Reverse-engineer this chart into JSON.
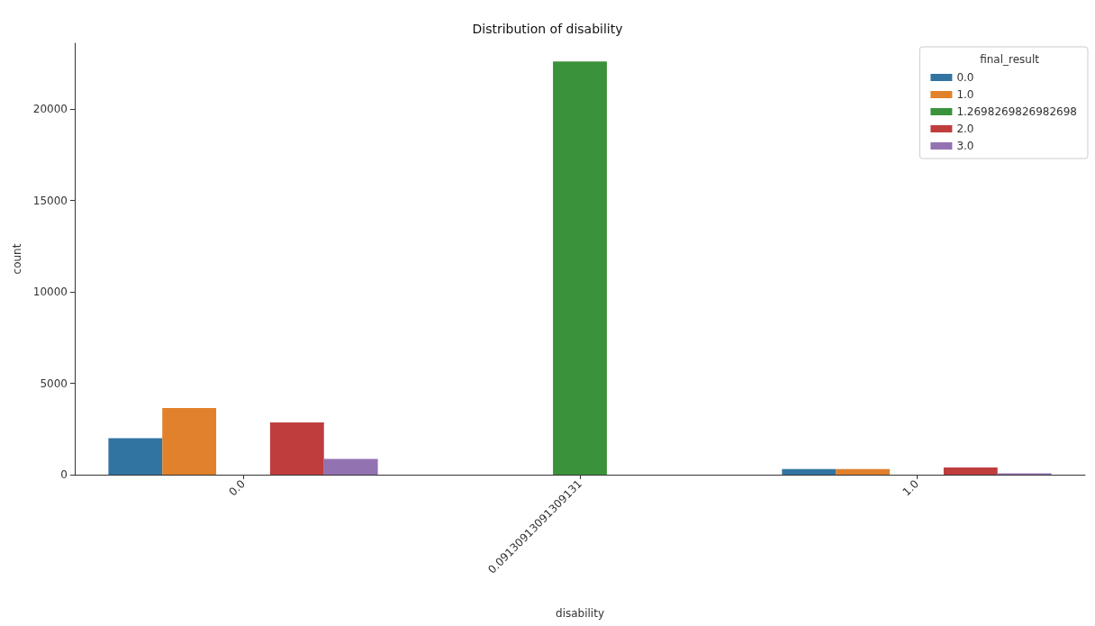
{
  "chart_data": {
    "type": "bar",
    "title": "Distribution of disability",
    "xlabel": "disability",
    "ylabel": "count",
    "legend_title": "final_result",
    "categories": [
      "0.0",
      "0.09130913091309131",
      "1.0"
    ],
    "series": [
      {
        "name": "0.0",
        "color": "#3274a1",
        "values": [
          1990,
          null,
          310
        ]
      },
      {
        "name": "1.0",
        "color": "#e1812c",
        "values": [
          3650,
          null,
          310
        ]
      },
      {
        "name": "1.2698269826982698",
        "color": "#3a923a",
        "values": [
          null,
          22600,
          null
        ]
      },
      {
        "name": "2.0",
        "color": "#c03d3e",
        "values": [
          2860,
          null,
          390
        ]
      },
      {
        "name": "3.0",
        "color": "#9372b2",
        "values": [
          860,
          null,
          80
        ]
      }
    ],
    "ylim": [
      0,
      23600
    ],
    "yticks": [
      0,
      5000,
      10000,
      15000,
      20000
    ],
    "grid": false,
    "legend": "top right"
  }
}
